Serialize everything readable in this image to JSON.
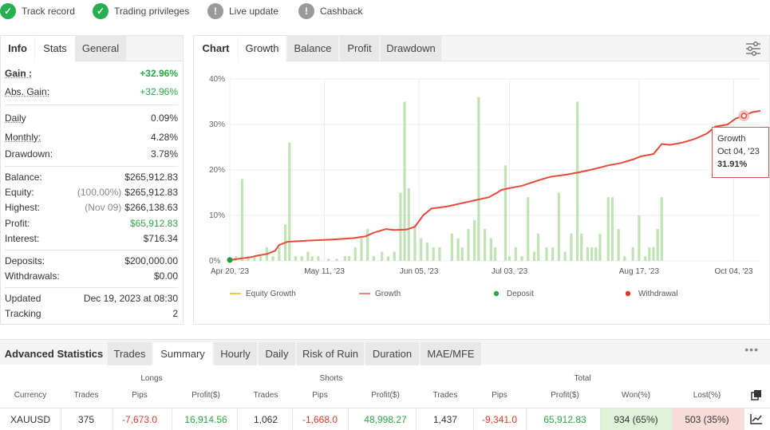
{
  "badges": [
    {
      "label": "Track record",
      "status": "ok"
    },
    {
      "label": "Trading privileges",
      "status": "ok"
    },
    {
      "label": "Live update",
      "status": "na"
    },
    {
      "label": "Cashback",
      "status": "na"
    }
  ],
  "info_tabs": [
    "Info",
    "Stats",
    "General"
  ],
  "info": {
    "gain": {
      "label": "Gain :",
      "value": "+32.96%"
    },
    "abs_gain": {
      "label": "Abs. Gain:",
      "value": "+32.96%"
    },
    "daily": {
      "label": "Daily",
      "value": "0.09%"
    },
    "monthly": {
      "label": "Monthly:",
      "value": "4.28%"
    },
    "drawdown": {
      "label": "Drawdown:",
      "value": "3.78%"
    },
    "balance": {
      "label": "Balance:",
      "value": "$265,912.83"
    },
    "equity": {
      "label": "Equity:",
      "pre": "(100.00%)",
      "value": "$265,912.83"
    },
    "highest": {
      "label": "Highest:",
      "pre": "(Nov 09)",
      "value": "$266,138.63"
    },
    "profit": {
      "label": "Profit:",
      "value": "$65,912.83"
    },
    "interest": {
      "label": "Interest:",
      "value": "$716.34"
    },
    "deposits": {
      "label": "Deposits:",
      "value": "$200,000.00"
    },
    "withdrawals": {
      "label": "Withdrawals:",
      "value": "$0.00"
    },
    "updated": {
      "label": "Updated",
      "value": "Dec 19, 2023 at 08:30"
    },
    "tracking": {
      "label": "Tracking",
      "value": "2"
    }
  },
  "chart_tabs": [
    "Chart",
    "Growth",
    "Balance",
    "Profit",
    "Drawdown"
  ],
  "chart_data": {
    "type": "line",
    "y_ticks": [
      "40%",
      "30%",
      "20%",
      "10%",
      "0%"
    ],
    "ylim": [
      0,
      40
    ],
    "x_ticks": [
      "Apr 20, '23",
      "May 11, '23",
      "Jun 05, '23",
      "Jul 03, '23",
      "Aug 17, '23",
      "Oct 04, '23"
    ],
    "growth_series": [
      [
        0,
        0.2
      ],
      [
        5,
        0.5
      ],
      [
        10,
        0.8
      ],
      [
        14,
        1.2
      ],
      [
        18,
        1.5
      ],
      [
        22,
        2.2
      ],
      [
        24,
        3.5
      ],
      [
        28,
        4.2
      ],
      [
        32,
        4.3
      ],
      [
        40,
        4.5
      ],
      [
        50,
        4.7
      ],
      [
        60,
        5.0
      ],
      [
        66,
        5.4
      ],
      [
        70,
        6.2
      ],
      [
        76,
        7.0
      ],
      [
        80,
        6.8
      ],
      [
        86,
        6.9
      ],
      [
        90,
        7.5
      ],
      [
        94,
        10.0
      ],
      [
        98,
        11.5
      ],
      [
        106,
        12.0
      ],
      [
        112,
        12.6
      ],
      [
        120,
        13.4
      ],
      [
        126,
        14.0
      ],
      [
        130,
        15.0
      ],
      [
        132,
        15.6
      ],
      [
        136,
        16.0
      ],
      [
        142,
        16.5
      ],
      [
        152,
        18.0
      ],
      [
        156,
        18.5
      ],
      [
        164,
        19.0
      ],
      [
        170,
        19.5
      ],
      [
        178,
        20.3
      ],
      [
        184,
        21.0
      ],
      [
        190,
        21.5
      ],
      [
        196,
        22.3
      ],
      [
        200,
        23.0
      ],
      [
        206,
        23.5
      ],
      [
        210,
        25.7
      ],
      [
        214,
        25.5
      ],
      [
        220,
        26.0
      ],
      [
        226,
        26.8
      ],
      [
        232,
        28.0
      ],
      [
        236,
        29.5
      ],
      [
        242,
        30.0
      ],
      [
        246,
        31.3
      ],
      [
        250,
        31.9
      ],
      [
        254,
        32.7
      ],
      [
        258,
        33.0
      ]
    ],
    "bars": [
      [
        3,
        1
      ],
      [
        6,
        18
      ],
      [
        9,
        1
      ],
      [
        12,
        1
      ],
      [
        15,
        1
      ],
      [
        18,
        3
      ],
      [
        21,
        1
      ],
      [
        24,
        3
      ],
      [
        27,
        8
      ],
      [
        29,
        26
      ],
      [
        32,
        1
      ],
      [
        35,
        1
      ],
      [
        38,
        2
      ],
      [
        40,
        1
      ],
      [
        43,
        1
      ],
      [
        48,
        0.5
      ],
      [
        52,
        0.5
      ],
      [
        56,
        1
      ],
      [
        58,
        1
      ],
      [
        61,
        3
      ],
      [
        64,
        5
      ],
      [
        67,
        7
      ],
      [
        70,
        1
      ],
      [
        74,
        2
      ],
      [
        77,
        1
      ],
      [
        80,
        2
      ],
      [
        83,
        15
      ],
      [
        85,
        35
      ],
      [
        87,
        16
      ],
      [
        90,
        8
      ],
      [
        93,
        5
      ],
      [
        96,
        4
      ],
      [
        99,
        3
      ],
      [
        102,
        3
      ],
      [
        108,
        6
      ],
      [
        111,
        5
      ],
      [
        113,
        3
      ],
      [
        116,
        7
      ],
      [
        119,
        9
      ],
      [
        121,
        36
      ],
      [
        124,
        7
      ],
      [
        127,
        5
      ],
      [
        129,
        3
      ],
      [
        134,
        21
      ],
      [
        136,
        1
      ],
      [
        139,
        3
      ],
      [
        142,
        1
      ],
      [
        145,
        14
      ],
      [
        148,
        2
      ],
      [
        150,
        6
      ],
      [
        154,
        3
      ],
      [
        157,
        3
      ],
      [
        160,
        15
      ],
      [
        163,
        2
      ],
      [
        166,
        6
      ],
      [
        169,
        35
      ],
      [
        171,
        6
      ],
      [
        174,
        3
      ],
      [
        176,
        3
      ],
      [
        178,
        3
      ],
      [
        180,
        6
      ],
      [
        184,
        14
      ],
      [
        186,
        14
      ],
      [
        189,
        7
      ],
      [
        192,
        1
      ],
      [
        196,
        3
      ],
      [
        199,
        10
      ],
      [
        202,
        1
      ],
      [
        204,
        3
      ],
      [
        206,
        3
      ],
      [
        208,
        7
      ],
      [
        210,
        14
      ]
    ],
    "legend": [
      {
        "name": "Equity Growth",
        "color": "#f2c94c",
        "kind": "line"
      },
      {
        "name": "Growth",
        "color": "#f08080",
        "kind": "line"
      },
      {
        "name": "Deposit",
        "color": "#27a844",
        "kind": "dot"
      },
      {
        "name": "Withdrawal",
        "color": "#e0392b",
        "kind": "dot"
      }
    ],
    "tooltip": {
      "series": "Growth",
      "date": "Oct 04, '23",
      "value": "31.91%"
    }
  },
  "stats_tabs": [
    "Advanced Statistics",
    "Trades",
    "Summary",
    "Hourly",
    "Daily",
    "Risk of Ruin",
    "Duration",
    "MAE/MFE"
  ],
  "table": {
    "groups": [
      "Longs",
      "Shorts",
      "Total"
    ],
    "headers": [
      "Currency",
      "Trades",
      "Pips",
      "Profit($)",
      "Trades",
      "Pips",
      "Profit($)",
      "Trades",
      "Pips",
      "Profit($)",
      "Won(%)",
      "Lost(%)"
    ],
    "row": [
      "XAUUSD",
      "375",
      "-7,673.0",
      "16,914.56",
      "1,062",
      "-1,668.0",
      "48,998.27",
      "1,437",
      "-9,341.0",
      "65,912.83",
      "934 (65%)",
      "503 (35%)"
    ]
  }
}
